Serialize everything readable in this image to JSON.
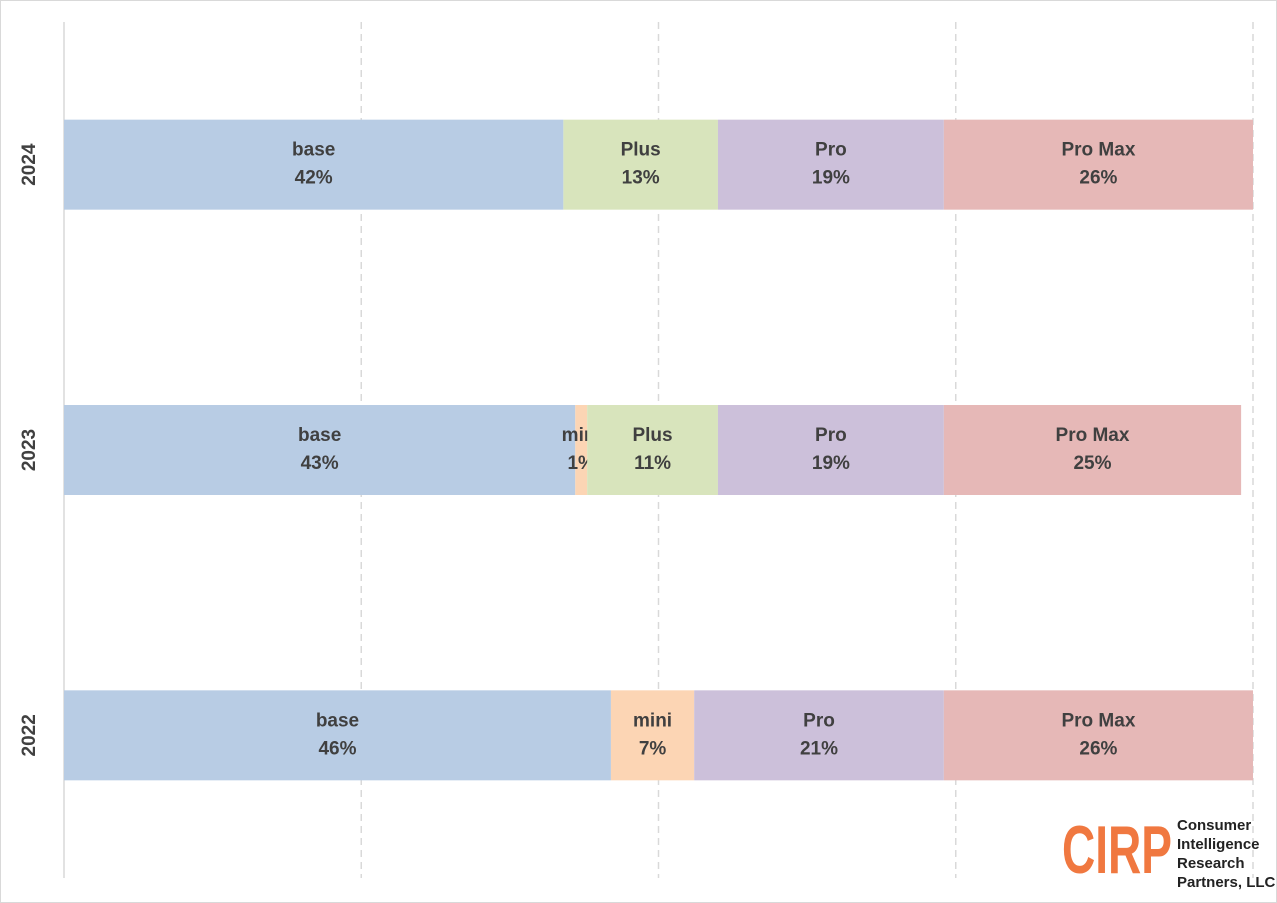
{
  "chart_data": {
    "type": "stacked-bar-horizontal",
    "categories": [
      "2024",
      "2023",
      "2022"
    ],
    "series": [
      {
        "name": "base",
        "color": "#b8cce4",
        "values": [
          42,
          43,
          46
        ],
        "value_labels": [
          "42%",
          "43%",
          "46%"
        ]
      },
      {
        "name": "mini",
        "color": "#fcd5b4",
        "values": [
          null,
          1,
          7
        ],
        "value_labels": [
          null,
          "1%",
          "7%"
        ]
      },
      {
        "name": "Plus",
        "color": "#d8e4bc",
        "values": [
          13,
          11,
          null
        ],
        "value_labels": [
          "13%",
          "11%",
          null
        ]
      },
      {
        "name": "Pro",
        "color": "#ccc0da",
        "values": [
          19,
          19,
          21
        ],
        "value_labels": [
          "19%",
          "19%",
          "21%"
        ]
      },
      {
        "name": "Pro Max",
        "color": "#e6b8b7",
        "values": [
          26,
          25,
          26
        ],
        "value_labels": [
          "26%",
          "25%",
          "26%"
        ]
      }
    ],
    "xlim": [
      0,
      100
    ],
    "xticks": [
      0,
      25,
      50,
      75,
      100
    ],
    "grid": true
  },
  "logo": {
    "mark": "CIRP",
    "lines": [
      "Consumer",
      "Intelligence",
      "Research",
      "Partners, LLC"
    ]
  }
}
